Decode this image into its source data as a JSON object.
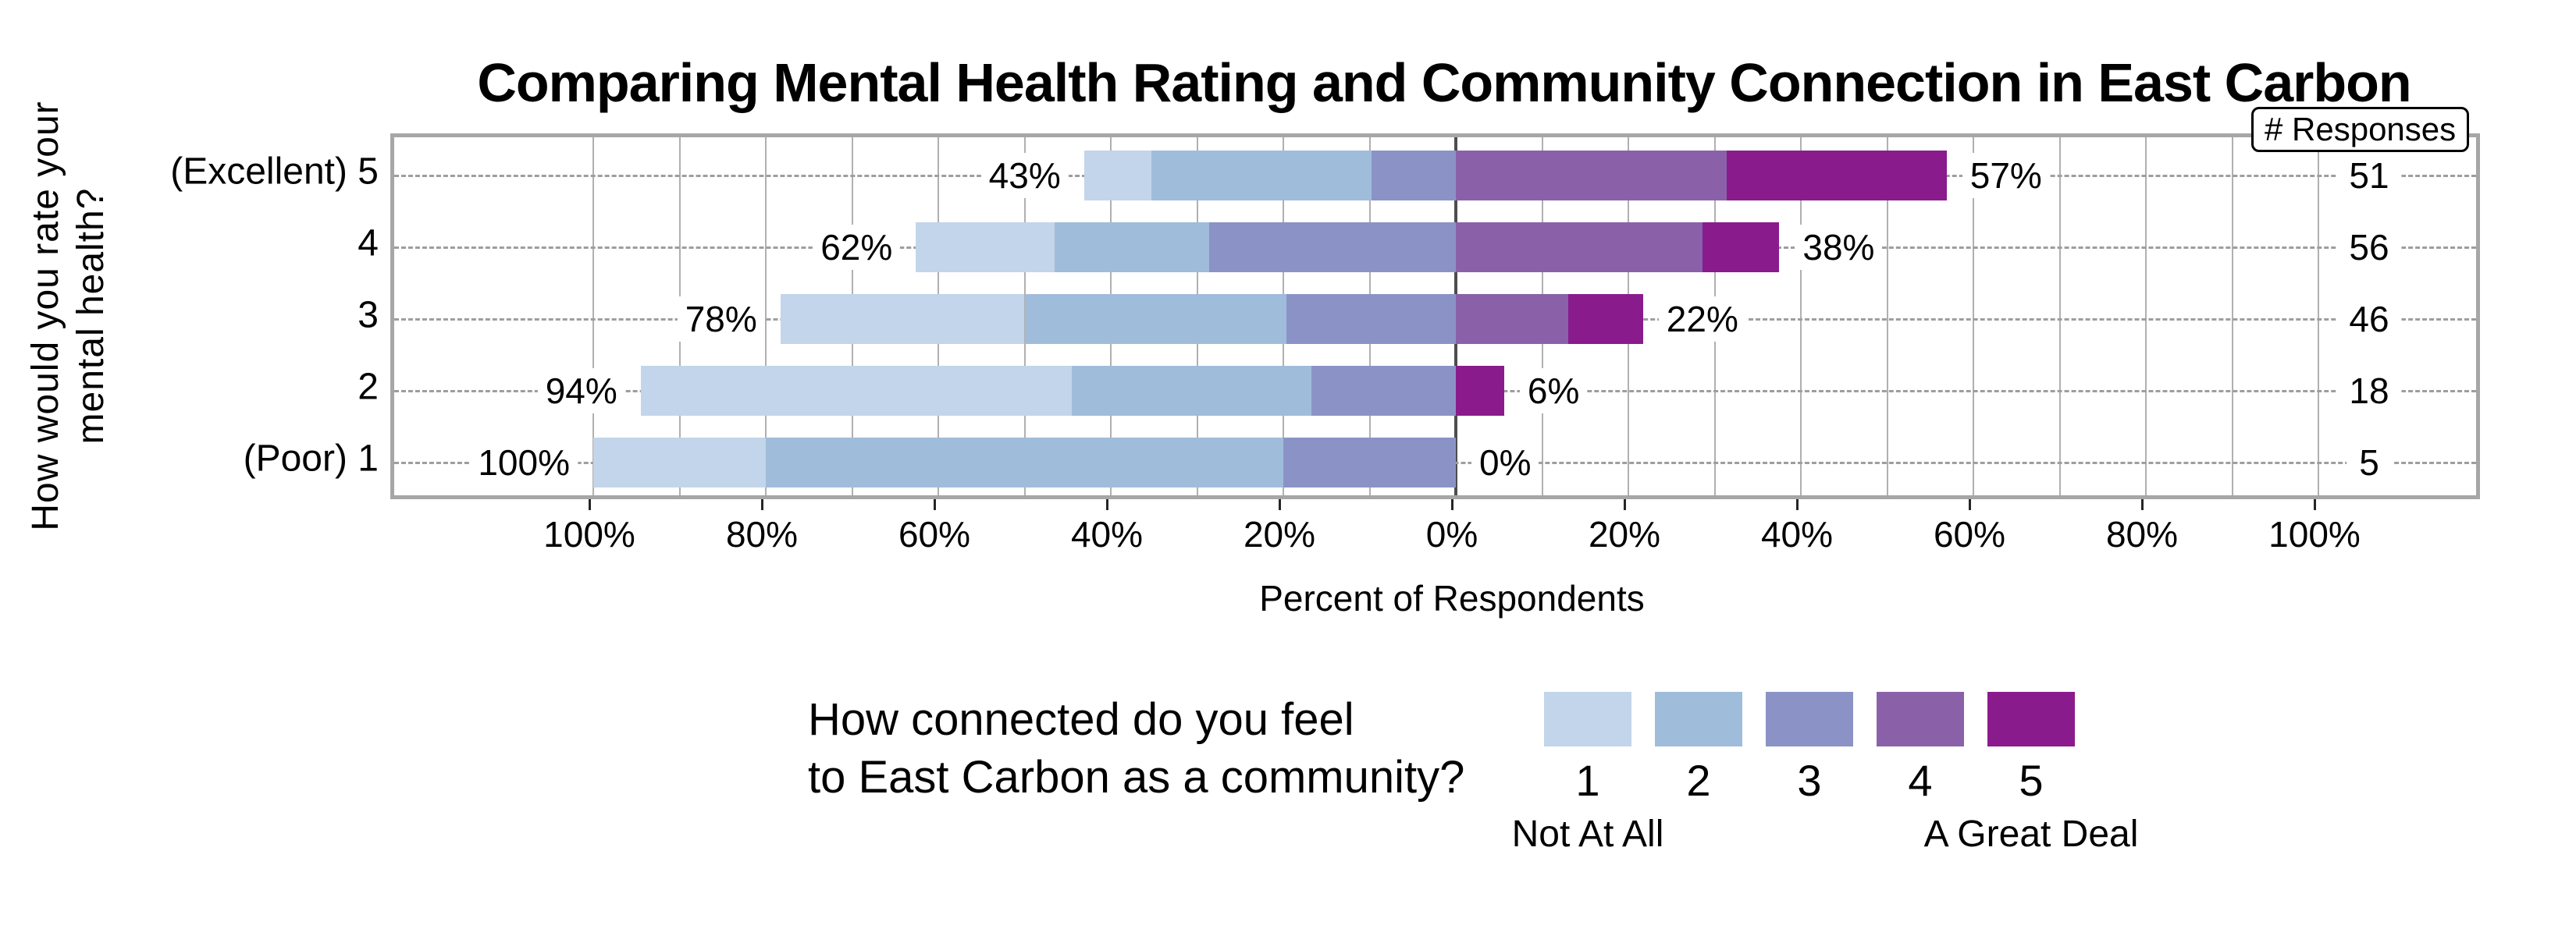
{
  "header": {
    "title": "Comparing Mental Health Rating and Community Connection in East Carbon"
  },
  "y_axis": {
    "label_line1": "How would you rate your",
    "label_line2": "mental health?",
    "row_labels": [
      "(Excellent) 5",
      "4",
      "3",
      "2",
      "(Poor) 1"
    ]
  },
  "x_axis": {
    "label": "Percent of Respondents",
    "tick_labels": [
      "100%",
      "80%",
      "60%",
      "40%",
      "20%",
      "0%",
      "20%",
      "40%",
      "60%",
      "80%",
      "100%"
    ],
    "tick_values": [
      -100,
      -80,
      -60,
      -40,
      -20,
      0,
      20,
      40,
      60,
      80,
      100
    ]
  },
  "responses": {
    "header": "# Responses",
    "values": [
      "51",
      "56",
      "46",
      "18",
      "5"
    ]
  },
  "legend": {
    "question_line1": "How connected do you feel",
    "question_line2": "to East Carbon as a community?",
    "categories": [
      "1",
      "2",
      "3",
      "4",
      "5"
    ],
    "left_endpoint": "Not At All",
    "right_endpoint": "A Great Deal"
  },
  "colors": {
    "category_1": "#c2d5ea",
    "category_2": "#a0bcdb",
    "category_3": "#8b93c6",
    "category_4": "#8a61a9",
    "category_5": "#8a1b8d",
    "frame": "#a6a6a6",
    "minor_grid": "#b0b0b0",
    "zero_line": "#4d4d4d",
    "row_dash": "#9e9e9e"
  },
  "chart_data": {
    "type": "bar",
    "subtype": "horizontal-diverging-stacked",
    "title": "Comparing Mental Health Rating and Community Connection in East Carbon",
    "xlabel": "Percent of Respondents",
    "ylabel": "How would you rate your mental health?",
    "legend_title": "How connected do you feel to East Carbon as a community?",
    "legend_scale_note": "1 = Not At All, 5 = A Great Deal",
    "axis_note": "connection levels 1-3 stack left of 0%, levels 4-5 stack right of 0%",
    "xlim": [
      -120,
      120
    ],
    "x_ticks": [
      -100,
      -80,
      -60,
      -40,
      -20,
      0,
      20,
      40,
      60,
      80,
      100
    ],
    "grid": "minor vertical every 10%, dashed horizontal per row",
    "legend_position": "below chart",
    "categories": [
      "(Excellent) 5",
      "4",
      "3",
      "2",
      "(Poor) 1"
    ],
    "n_responses": [
      51,
      56,
      46,
      18,
      5
    ],
    "series": [
      {
        "name": "1",
        "values": [
          7.8,
          16.1,
          28.3,
          50.0,
          20.0
        ]
      },
      {
        "name": "2",
        "values": [
          25.5,
          17.9,
          30.4,
          27.8,
          60.0
        ]
      },
      {
        "name": "3",
        "values": [
          9.8,
          28.6,
          19.6,
          16.7,
          20.0
        ]
      },
      {
        "name": "4",
        "values": [
          31.4,
          28.6,
          13.0,
          0.0,
          0.0
        ]
      },
      {
        "name": "5",
        "values": [
          25.5,
          8.9,
          8.7,
          5.6,
          0.0
        ]
      }
    ],
    "left_total_labels": [
      "43%",
      "62%",
      "78%",
      "94%",
      "100%"
    ],
    "right_total_labels": [
      "57%",
      "38%",
      "22%",
      "6%",
      "0%"
    ]
  }
}
